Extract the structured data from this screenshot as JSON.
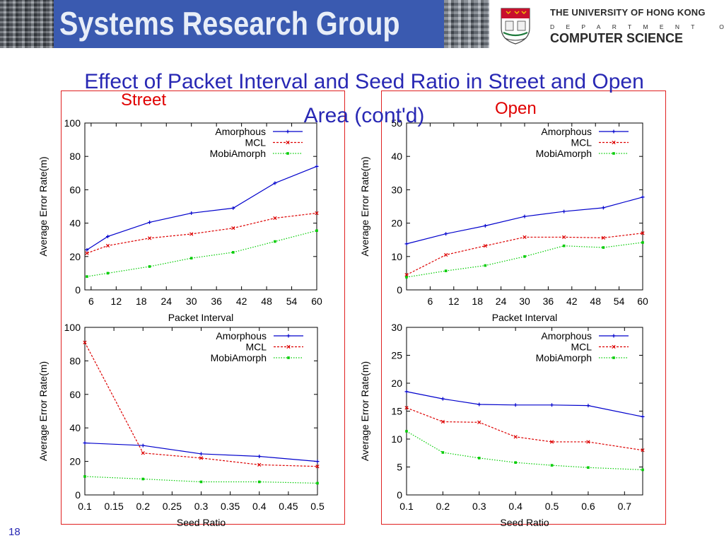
{
  "header": {
    "banner_text": "Systems Research Group",
    "university": "THE UNIVERSITY OF HONG KONG",
    "department_word": "DEPARTMENT OF",
    "department_name": "COMPUTER SCIENCE",
    "crest_icon": "university-crest-icon",
    "banner_color": "#3a5ab0"
  },
  "slide": {
    "title": "Effect of Packet Interval and Seed Ratio in Street and Open Area (cont'd)",
    "left_label": "Street",
    "right_label": "Open",
    "number": "18",
    "title_color": "#2828b4",
    "label_color": "#e00000"
  },
  "chart_data": [
    {
      "type": "line",
      "xlabel": "Packet Interval",
      "ylabel": "Average Error Rate(m)",
      "xlim": [
        4.5,
        60
      ],
      "ylim": [
        0,
        100
      ],
      "xticks": [
        6,
        12,
        18,
        24,
        30,
        36,
        42,
        48,
        54,
        60
      ],
      "yticks": [
        0,
        20,
        40,
        60,
        80,
        100
      ],
      "x": [
        5,
        10,
        20,
        30,
        40,
        50,
        60
      ],
      "legend": "top-right",
      "grid": false,
      "series": [
        {
          "name": "Amorphous",
          "color": "#0000cc",
          "dash": "solid",
          "values": [
            24,
            32,
            40.5,
            46,
            49,
            64,
            74
          ]
        },
        {
          "name": "MCL",
          "color": "#dd0000",
          "dash": "dashed",
          "values": [
            22,
            26.5,
            31,
            33.5,
            37,
            43,
            46
          ]
        },
        {
          "name": "MobiAmorph",
          "color": "#00cc00",
          "dash": "dotted",
          "values": [
            8,
            10,
            14,
            19,
            22.5,
            29,
            35.5
          ]
        }
      ]
    },
    {
      "type": "line",
      "xlabel": "Packet Interval",
      "ylabel": "Average Error Rate(m)",
      "xlim": [
        0,
        60
      ],
      "ylim": [
        0,
        50
      ],
      "xticks": [
        6,
        12,
        18,
        24,
        30,
        36,
        42,
        48,
        54,
        60
      ],
      "yticks": [
        0,
        10,
        20,
        30,
        40,
        50
      ],
      "x": [
        0,
        10,
        20,
        30,
        40,
        50,
        60
      ],
      "legend": "top-right",
      "grid": false,
      "series": [
        {
          "name": "Amorphous",
          "color": "#0000cc",
          "dash": "solid",
          "values": [
            13.8,
            16.8,
            19.2,
            22,
            23.5,
            24.6,
            27.8
          ]
        },
        {
          "name": "MCL",
          "color": "#dd0000",
          "dash": "dashed",
          "values": [
            4.5,
            10.5,
            13.2,
            15.8,
            15.8,
            15.6,
            17
          ]
        },
        {
          "name": "MobiAmorph",
          "color": "#00cc00",
          "dash": "dotted",
          "values": [
            3.8,
            5.7,
            7.3,
            10,
            13.2,
            12.7,
            14.2
          ]
        }
      ]
    },
    {
      "type": "line",
      "xlabel": "Seed Ratio",
      "ylabel": "Average Error Rate(m)",
      "xlim": [
        0.1,
        0.5
      ],
      "ylim": [
        0,
        100
      ],
      "xticks": [
        0.1,
        0.15,
        0.2,
        0.25,
        0.3,
        0.35,
        0.4,
        0.45,
        0.5
      ],
      "yticks": [
        0,
        20,
        40,
        60,
        80,
        100
      ],
      "x": [
        0.1,
        0.2,
        0.3,
        0.4,
        0.5
      ],
      "legend": "top-right",
      "grid": false,
      "series": [
        {
          "name": "Amorphous",
          "color": "#0000cc",
          "dash": "solid",
          "values": [
            31,
            29.5,
            24.5,
            23,
            20
          ]
        },
        {
          "name": "MCL",
          "color": "#dd0000",
          "dash": "dashed",
          "values": [
            91,
            25,
            22,
            18,
            17
          ]
        },
        {
          "name": "MobiAmorph",
          "color": "#00cc00",
          "dash": "dotted",
          "values": [
            11,
            9.5,
            7.8,
            7.8,
            7
          ]
        }
      ]
    },
    {
      "type": "line",
      "xlabel": "Seed Ratio",
      "ylabel": "Average Error Rate(m)",
      "xlim": [
        0.1,
        0.75
      ],
      "ylim": [
        0,
        30
      ],
      "xticks": [
        0.1,
        0.2,
        0.3,
        0.4,
        0.5,
        0.6,
        0.7
      ],
      "yticks": [
        0,
        5,
        10,
        15,
        20,
        25,
        30
      ],
      "x": [
        0.1,
        0.2,
        0.3,
        0.4,
        0.5,
        0.6,
        0.75
      ],
      "legend": "top-right",
      "grid": false,
      "series": [
        {
          "name": "Amorphous",
          "color": "#0000cc",
          "dash": "solid",
          "values": [
            18.5,
            17.2,
            16.2,
            16.1,
            16.1,
            16,
            14
          ]
        },
        {
          "name": "MCL",
          "color": "#dd0000",
          "dash": "dashed",
          "values": [
            15.6,
            13.1,
            13,
            10.4,
            9.5,
            9.5,
            8
          ]
        },
        {
          "name": "MobiAmorph",
          "color": "#00cc00",
          "dash": "dotted",
          "values": [
            11.4,
            7.6,
            6.6,
            5.8,
            5.3,
            4.9,
            4.5
          ]
        }
      ]
    }
  ]
}
